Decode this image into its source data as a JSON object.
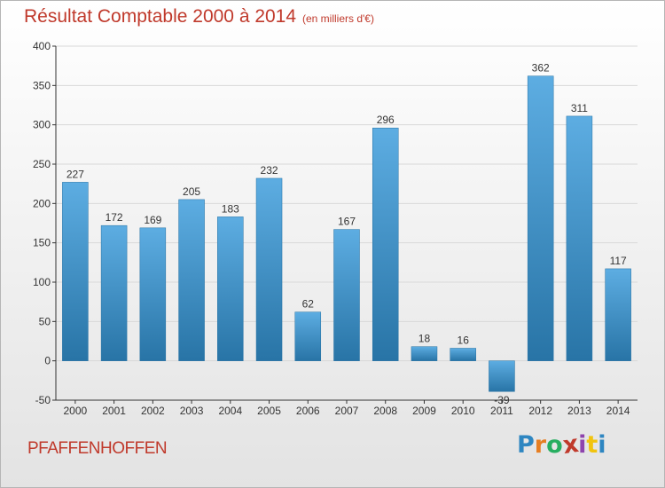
{
  "title": "Résultat Comptable 2000 à 2014",
  "subtitle": "(en milliers d'€)",
  "place": "PFAFFENHOFFEN",
  "logo": {
    "text": "Proxiti",
    "letters": [
      "P",
      "r",
      "o",
      "x",
      "i",
      "t",
      "i"
    ],
    "colors": [
      "#2e86c1",
      "#e67e22",
      "#27ae60",
      "#c0392b",
      "#8e44ad",
      "#f1c40f",
      "#2e86c1"
    ]
  },
  "colors": {
    "bar_top": "#5dade2",
    "bar_bottom": "#2874a6",
    "title": "#c0392b",
    "grid": "#d8d8d8"
  },
  "chart_data": {
    "type": "bar",
    "categories": [
      "2000",
      "2001",
      "2002",
      "2003",
      "2004",
      "2005",
      "2006",
      "2007",
      "2008",
      "2009",
      "2010",
      "2011",
      "2012",
      "2013",
      "2014"
    ],
    "values": [
      227,
      172,
      169,
      205,
      183,
      232,
      62,
      167,
      296,
      18,
      16,
      -39,
      362,
      311,
      117
    ],
    "value_labels": [
      "227",
      "172",
      "169",
      "205",
      "183",
      "232",
      "62",
      "167",
      "296",
      "18",
      "16",
      "-39",
      "362",
      "311",
      "117"
    ],
    "yticks": [
      400,
      350,
      300,
      250,
      200,
      150,
      100,
      50,
      0,
      -50
    ],
    "ytick_labels": [
      "400",
      "350",
      "300",
      "250",
      "200",
      "150",
      "100",
      "50",
      "0",
      "-50"
    ],
    "ylim": [
      -50,
      400
    ],
    "grid": true
  }
}
